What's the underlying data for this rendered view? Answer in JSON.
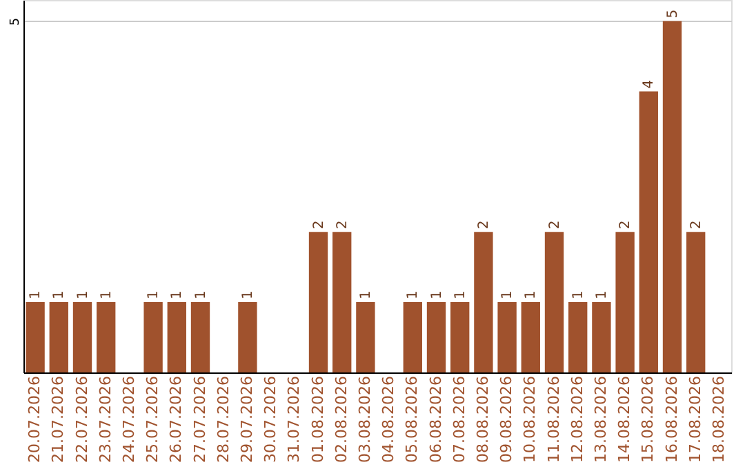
{
  "chart_data": {
    "type": "bar",
    "categories": [
      "20.07.2026",
      "21.07.2026",
      "22.07.2026",
      "23.07.2026",
      "24.07.2026",
      "25.07.2026",
      "26.07.2026",
      "27.07.2026",
      "28.07.2026",
      "29.07.2026",
      "30.07.2026",
      "31.07.2026",
      "01.08.2026",
      "02.08.2026",
      "03.08.2026",
      "04.08.2026",
      "05.08.2026",
      "06.08.2026",
      "07.08.2026",
      "08.08.2026",
      "09.08.2026",
      "10.08.2026",
      "11.08.2026",
      "12.08.2026",
      "13.08.2026",
      "14.08.2026",
      "15.08.2026",
      "16.08.2026",
      "17.08.2026",
      "18.08.2026"
    ],
    "values": [
      1,
      1,
      1,
      1,
      null,
      1,
      1,
      1,
      null,
      1,
      null,
      null,
      2,
      2,
      1,
      null,
      1,
      1,
      1,
      2,
      1,
      1,
      2,
      1,
      1,
      2,
      4,
      5,
      2,
      null
    ],
    "color": "#a0522d",
    "ylim": [
      0,
      5.3
    ],
    "yticks": [
      5
    ],
    "grid": "y",
    "data_labels": true
  }
}
